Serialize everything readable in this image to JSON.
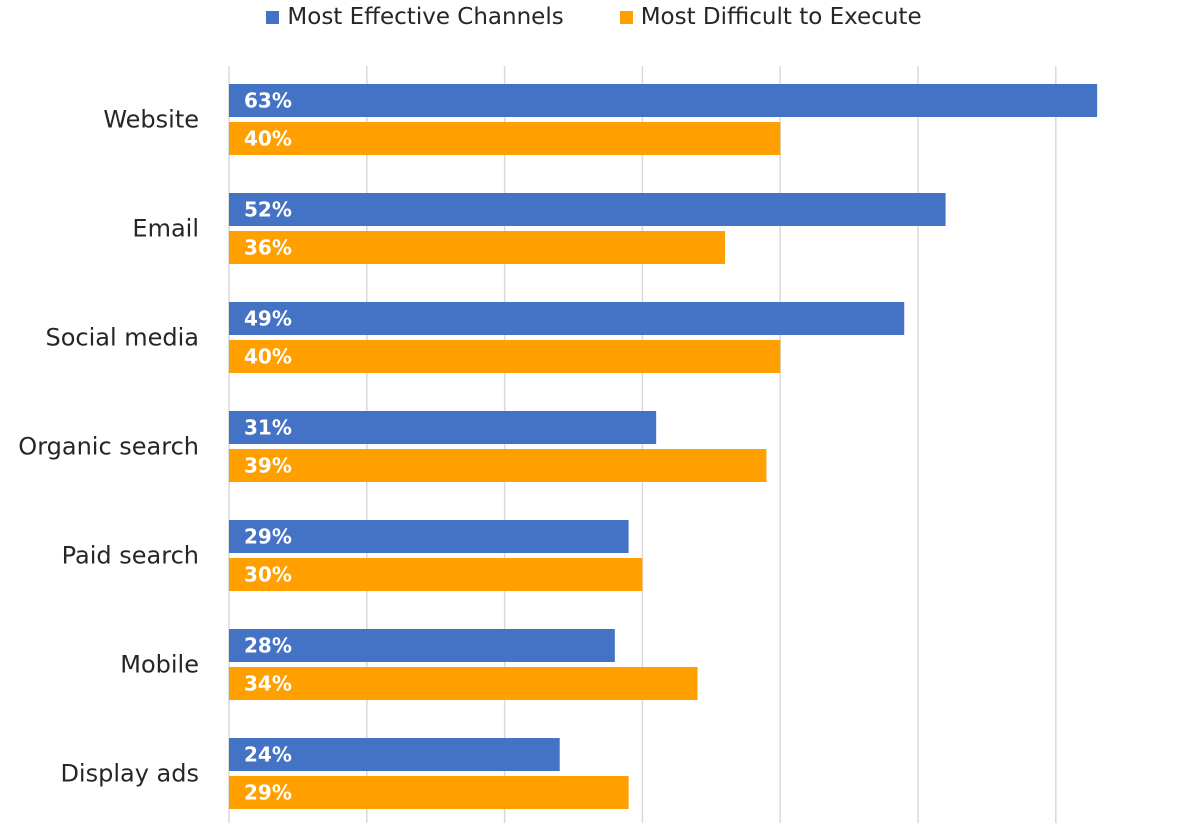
{
  "chart_data": {
    "type": "bar",
    "orientation": "horizontal",
    "categories": [
      "Website",
      "Email",
      "Social media",
      "Organic search",
      "Paid search",
      "Mobile",
      "Display ads"
    ],
    "series": [
      {
        "name": "Most Effective Channels",
        "color": "#4472C4",
        "values": [
          63,
          52,
          49,
          31,
          29,
          28,
          24
        ],
        "labels": [
          "63%",
          "52%",
          "49%",
          "31%",
          "29%",
          "28%",
          "24%"
        ]
      },
      {
        "name": "Most Difficult to Execute",
        "color": "#FF9F00",
        "values": [
          40,
          36,
          40,
          39,
          30,
          34,
          29
        ],
        "labels": [
          "40%",
          "36%",
          "40%",
          "39%",
          "30%",
          "34%",
          "29%"
        ]
      }
    ],
    "xlim": [
      0,
      70
    ],
    "grid": true,
    "legend_position": "top-center",
    "xlabel": "",
    "ylabel": "",
    "title": ""
  }
}
